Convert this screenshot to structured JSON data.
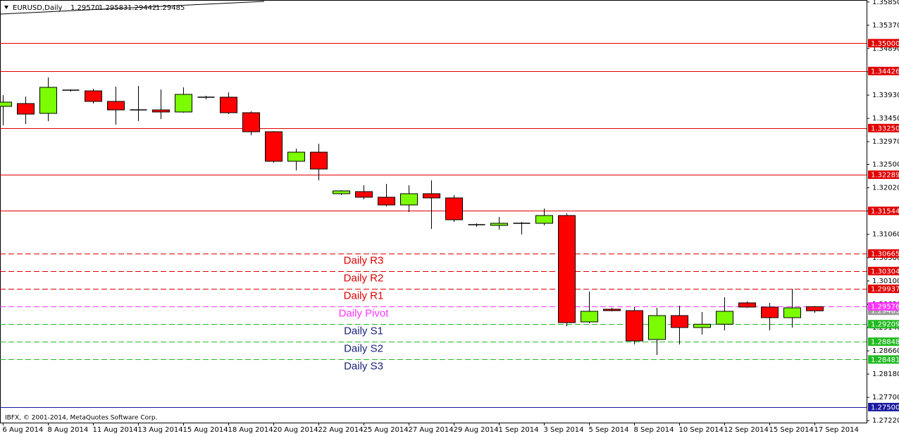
{
  "chart_data": {
    "type": "candlestick",
    "title": "EURUSD,Daily",
    "header_labels": [
      "1.29570",
      "1.29583",
      "1.29442",
      "1.29485"
    ],
    "footer": "IBFX, © 2001-2014, MetaQuotes Software Corp.",
    "categories": [
      "6 Aug 2014",
      null,
      "8 Aug 2014",
      null,
      "11 Aug 2014",
      null,
      "13 Aug 2014",
      null,
      "15 Aug 2014",
      null,
      "18 Aug 2014",
      null,
      "20 Aug 2014",
      null,
      "22 Aug 2014",
      null,
      "25 Aug 2014",
      null,
      "27 Aug 2014",
      null,
      "29 Aug 2014",
      null,
      "1 Sep 2014",
      null,
      "3 Sep 2014",
      null,
      "5 Sep 2014",
      null,
      "8 Sep 2014",
      null,
      "10 Sep 2014",
      null,
      "12 Sep 2014",
      null,
      "15 Sep 2014",
      null,
      "17 Sep 2014"
    ],
    "open": [
      1.33698,
      1.33756,
      1.33553,
      1.34032,
      1.34017,
      1.338,
      1.33625,
      1.33625,
      1.33582,
      1.33887,
      1.33887,
      1.33567,
      1.33175,
      1.32566,
      1.32754,
      1.31898,
      1.31941,
      1.31825,
      1.31666,
      1.31898,
      1.31811,
      1.31259,
      1.31245,
      1.31288,
      1.31288,
      1.31448,
      1.29256,
      1.29517,
      1.29488,
      1.28893,
      1.29386,
      1.2914,
      1.29208,
      1.29648,
      1.29561,
      1.29343,
      1.2957
    ],
    "high": [
      1.3393,
      1.33901,
      1.34293,
      1.34046,
      1.34061,
      1.34104,
      1.34119,
      1.34046,
      1.3409,
      1.33916,
      1.33988,
      1.33596,
      1.3319,
      1.32827,
      1.32929,
      1.3197,
      1.32072,
      1.32101,
      1.32072,
      1.32174,
      1.31869,
      1.31288,
      1.31419,
      1.31317,
      1.31593,
      1.31491,
      1.2988,
      1.29546,
      1.29561,
      1.29546,
      1.2959,
      1.29459,
      1.29764,
      1.29677,
      1.29648,
      1.29938,
      1.29583
    ],
    "low": [
      1.33306,
      1.33335,
      1.33393,
      1.34003,
      1.33756,
      1.33321,
      1.33393,
      1.33437,
      1.33567,
      1.33843,
      1.33538,
      1.33103,
      1.32537,
      1.32377,
      1.32174,
      1.31869,
      1.31782,
      1.31637,
      1.3152,
      1.31172,
      1.31317,
      1.31216,
      1.31158,
      1.31056,
      1.31245,
      1.29169,
      1.29227,
      1.29474,
      1.28791,
      1.28573,
      1.28791,
      1.28994,
      1.29082,
      1.29546,
      1.29082,
      1.2914,
      1.29442
    ],
    "close": [
      1.33785,
      1.33538,
      1.3409,
      1.34032,
      1.338,
      1.33625,
      1.33625,
      1.33582,
      1.33945,
      1.33887,
      1.33567,
      1.33175,
      1.32566,
      1.32754,
      1.32406,
      1.31956,
      1.31825,
      1.31666,
      1.31898,
      1.31811,
      1.31361,
      1.31259,
      1.31288,
      1.31288,
      1.31448,
      1.29241,
      1.29474,
      1.29488,
      1.28864,
      1.29386,
      1.2914,
      1.29208,
      1.29474,
      1.29561,
      1.29343,
      1.29546,
      1.29485
    ],
    "up_color": "#7cfc00",
    "down_color": "#ff0000",
    "doji_color": "#000000",
    "ylim": [
      1.2718,
      1.3589
    ],
    "yticks": [
      {
        "value": 1.3585,
        "label": "1.35850"
      },
      {
        "value": 1.3537,
        "label": "1.35370"
      },
      {
        "value": 1.3489,
        "label": "1.34890"
      },
      {
        "value": 1.3441,
        "label": "1.34410"
      },
      {
        "value": 1.3393,
        "label": "1.33930"
      },
      {
        "value": 1.3345,
        "label": "1.33450"
      },
      {
        "value": 1.3297,
        "label": "1.32970"
      },
      {
        "value": 1.325,
        "label": "1.32500"
      },
      {
        "value": 1.3202,
        "label": "1.32020"
      },
      {
        "value": 1.3154,
        "label": "1.31540"
      },
      {
        "value": 1.3106,
        "label": "1.31060"
      },
      {
        "value": 1.3058,
        "label": "1.30580"
      },
      {
        "value": 1.301,
        "label": "1.30100"
      },
      {
        "value": 1.2962,
        "label": "1.29620"
      },
      {
        "value": 1.2914,
        "label": "1.29140"
      },
      {
        "value": 1.2866,
        "label": "1.28660"
      },
      {
        "value": 1.2818,
        "label": "1.28180"
      },
      {
        "value": 1.277,
        "label": "1.27700"
      },
      {
        "value": 1.2722,
        "label": "1.27220"
      }
    ],
    "bid": {
      "value": 1.29485,
      "label": "1.29485",
      "color": "#9a9a9a"
    },
    "levels": [
      {
        "value": 1.35,
        "label": "1.35000",
        "color": "#e00000",
        "dashed": false
      },
      {
        "value": 1.34426,
        "label": "1.34426",
        "color": "#e00000",
        "dashed": false
      },
      {
        "value": 1.3325,
        "label": "1.33250",
        "color": "#e00000",
        "dashed": false
      },
      {
        "value": 1.32289,
        "label": "1.32289",
        "color": "#e00000",
        "dashed": false
      },
      {
        "value": 1.31544,
        "label": "1.31544",
        "color": "#e00000",
        "dashed": false
      },
      {
        "value": 1.30665,
        "label": "1.30665",
        "color": "#e00000",
        "dashed": true,
        "name": "Daily R3"
      },
      {
        "value": 1.30304,
        "label": "1.30304",
        "color": "#e00000",
        "dashed": true,
        "name": "Daily R2"
      },
      {
        "value": 1.29937,
        "label": "1.29937",
        "color": "#e00000",
        "dashed": true,
        "name": "Daily R1"
      },
      {
        "value": 1.29576,
        "label": "1.29576",
        "color": "#ff33ff",
        "dashed": true,
        "name": "Daily Pivot"
      },
      {
        "value": 1.29209,
        "label": "1.29209",
        "color": "#22bb22",
        "dashed": true,
        "name": "Daily S1",
        "name_color": "#1a237e"
      },
      {
        "value": 1.28848,
        "label": "1.28848",
        "color": "#22bb22",
        "dashed": true,
        "name": "Daily S2",
        "name_color": "#1a237e"
      },
      {
        "value": 1.28481,
        "label": "1.28481",
        "color": "#22bb22",
        "dashed": true,
        "name": "Daily S3",
        "name_color": "#1a237e"
      },
      {
        "value": 1.275,
        "label": "1.27500",
        "color": "#1a1aa0",
        "dashed": false
      }
    ]
  }
}
